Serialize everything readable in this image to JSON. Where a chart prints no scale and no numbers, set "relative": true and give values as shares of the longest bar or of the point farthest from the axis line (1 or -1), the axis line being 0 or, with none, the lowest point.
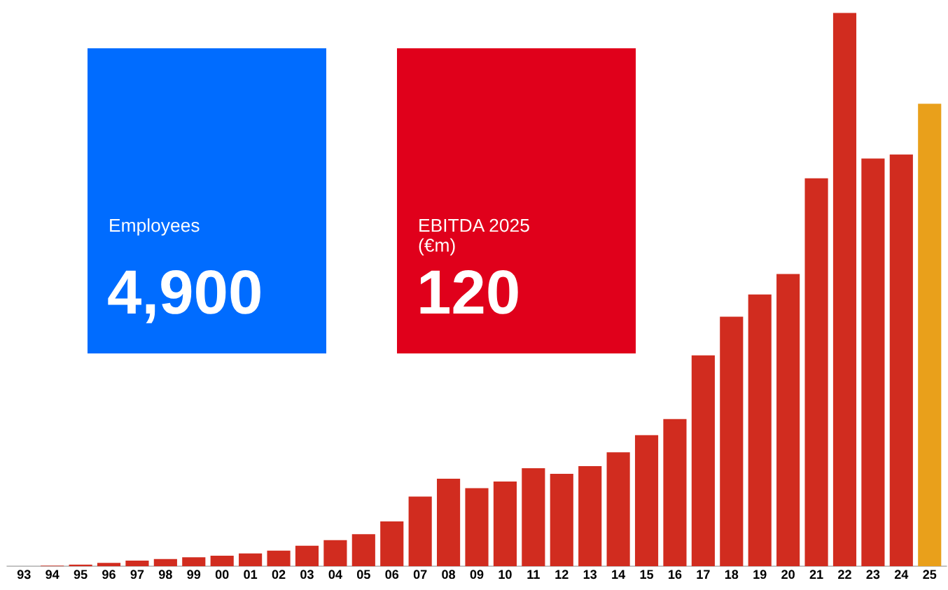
{
  "chart_data": {
    "type": "bar",
    "relative": true,
    "categories": [
      "93",
      "94",
      "95",
      "96",
      "97",
      "98",
      "99",
      "00",
      "01",
      "02",
      "03",
      "04",
      "05",
      "06",
      "07",
      "08",
      "09",
      "10",
      "11",
      "12",
      "13",
      "14",
      "15",
      "16",
      "17",
      "18",
      "19",
      "20",
      "21",
      "22",
      "23",
      "24",
      "25"
    ],
    "values": [
      0,
      0.001,
      0.003,
      0.006,
      0.01,
      0.013,
      0.016,
      0.019,
      0.023,
      0.028,
      0.037,
      0.047,
      0.058,
      0.081,
      0.126,
      0.158,
      0.141,
      0.153,
      0.177,
      0.167,
      0.181,
      0.206,
      0.237,
      0.266,
      0.381,
      0.451,
      0.491,
      0.528,
      0.701,
      1,
      0.737,
      0.744,
      0.836
    ],
    "colors": [
      "#d12c1f",
      "#d12c1f",
      "#d12c1f",
      "#d12c1f",
      "#d12c1f",
      "#d12c1f",
      "#d12c1f",
      "#d12c1f",
      "#d12c1f",
      "#d12c1f",
      "#d12c1f",
      "#d12c1f",
      "#d12c1f",
      "#d12c1f",
      "#d12c1f",
      "#d12c1f",
      "#d12c1f",
      "#d12c1f",
      "#d12c1f",
      "#d12c1f",
      "#d12c1f",
      "#d12c1f",
      "#d12c1f",
      "#d12c1f",
      "#d12c1f",
      "#d12c1f",
      "#d12c1f",
      "#d12c1f",
      "#d12c1f",
      "#d12c1f",
      "#d12c1f",
      "#d12c1f",
      "#e9a01b"
    ],
    "annotations": [
      "Employees",
      "4,900",
      "EBITDA 2025\n(€m)",
      "120"
    ],
    "grid": false
  }
}
